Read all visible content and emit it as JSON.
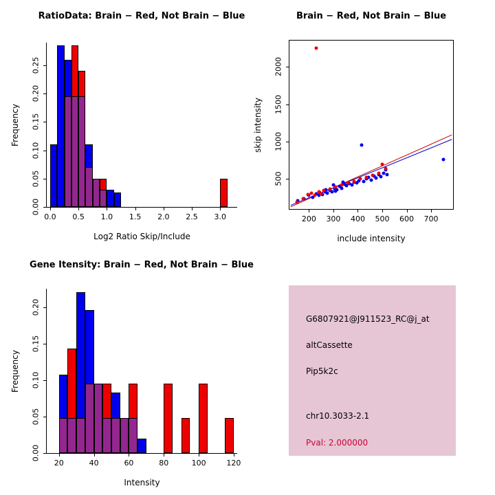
{
  "colors": {
    "red": "#ee0000",
    "blue": "#0000ee",
    "purple": "#93278f"
  },
  "panels": {
    "ratio_hist": {
      "title": "RatioData: Brain − Red, Not Brain − Blue",
      "xlabel": "Log2 Ratio Skip/Include",
      "ylabel": "Frequency"
    },
    "scatter": {
      "title": "Brain − Red, Not Brain − Blue",
      "xlabel": "include intensity",
      "ylabel": "skip intensity"
    },
    "gene_hist": {
      "title": "Gene Itensity: Brain − Red, Not Brain − Blue",
      "xlabel": "Intensity",
      "ylabel": "Frequency"
    },
    "info_box": {
      "bg": "#e6c6d4",
      "lines": [
        "G6807921@J911523_RC@j_at",
        "altCassette",
        "Pip5k2c",
        "chr10.3033-2.1"
      ],
      "pval": "Pval: 2.000000",
      "pval_color": "#cc0033"
    }
  },
  "chart_data": [
    {
      "type": "histogram",
      "panel": "ratio_hist",
      "title": "RatioData: Brain − Red, Not Brain − Blue",
      "xlabel": "Log2 Ratio Skip/Include",
      "ylabel": "Frequency",
      "bin_start": 0,
      "bin_width": 0.125,
      "xlim": [
        -0.06,
        3.3
      ],
      "ylim": [
        0,
        0.29
      ],
      "xticks": [
        0,
        0.5,
        1,
        1.5,
        2,
        2.5,
        3
      ],
      "xtick_labels": [
        "0.0",
        "0.5",
        "1.0",
        "1.5",
        "2.0",
        "2.5",
        "3.0"
      ],
      "yticks": [
        0,
        0.05,
        0.1,
        0.15,
        0.2,
        0.25
      ],
      "ytick_labels": [
        "0.00",
        "0.05",
        "0.10",
        "0.15",
        "0.20",
        "0.25"
      ],
      "series": [
        {
          "name": "Not Brain",
          "role": "blue",
          "color": "#0000ee",
          "values": [
            0.11,
            0.285,
            0.26,
            0.195,
            0.195,
            0.11,
            0.05,
            0.03,
            0.03,
            0.025,
            0,
            0,
            0,
            0,
            0,
            0,
            0,
            0,
            0,
            0,
            0,
            0,
            0,
            0,
            0
          ]
        },
        {
          "name": "Brain",
          "role": "red",
          "color": "#ee0000",
          "values": [
            0,
            0,
            0.195,
            0.285,
            0.24,
            0.07,
            0.05,
            0.05,
            0,
            0,
            0,
            0,
            0,
            0,
            0,
            0,
            0,
            0,
            0,
            0,
            0,
            0,
            0,
            0,
            0.05
          ]
        }
      ]
    },
    {
      "type": "scatter",
      "panel": "scatter",
      "title": "Brain − Red, Not Brain − Blue",
      "xlabel": "include intensity",
      "ylabel": "skip intensity",
      "xlim": [
        120,
        790
      ],
      "ylim": [
        100,
        2350
      ],
      "xticks": [
        200,
        300,
        400,
        500,
        600,
        700
      ],
      "xtick_labels": [
        "200",
        "300",
        "400",
        "500",
        "600",
        "700"
      ],
      "yticks": [
        500,
        1000,
        1500,
        2000
      ],
      "ytick_labels": [
        "500",
        "1000",
        "1500",
        "2000"
      ],
      "series": [
        {
          "name": "Not Brain",
          "role": "blue",
          "color": "#0000ee",
          "points": [
            [
              155,
              210
            ],
            [
              180,
              240
            ],
            [
              200,
              280
            ],
            [
              215,
              255
            ],
            [
              230,
              300
            ],
            [
              245,
              320
            ],
            [
              255,
              290
            ],
            [
              265,
              330
            ],
            [
              275,
              310
            ],
            [
              285,
              345
            ],
            [
              295,
              330
            ],
            [
              300,
              420
            ],
            [
              305,
              370
            ],
            [
              315,
              355
            ],
            [
              325,
              400
            ],
            [
              335,
              380
            ],
            [
              345,
              430
            ],
            [
              355,
              410
            ],
            [
              365,
              440
            ],
            [
              375,
              420
            ],
            [
              385,
              460
            ],
            [
              395,
              445
            ],
            [
              405,
              480
            ],
            [
              415,
              950
            ],
            [
              425,
              470
            ],
            [
              435,
              500
            ],
            [
              445,
              520
            ],
            [
              455,
              490
            ],
            [
              465,
              540
            ],
            [
              475,
              510
            ],
            [
              485,
              560
            ],
            [
              495,
              530
            ],
            [
              505,
              580
            ],
            [
              515,
              620
            ],
            [
              520,
              560
            ],
            [
              750,
              760
            ],
            [
              340,
              460
            ],
            [
              310,
              340
            ],
            [
              270,
              360
            ],
            [
              240,
              280
            ]
          ]
        },
        {
          "name": "Brain",
          "role": "red",
          "color": "#ee0000",
          "points": [
            [
              230,
              2250
            ],
            [
              150,
              190
            ],
            [
              175,
              240
            ],
            [
              195,
              290
            ],
            [
              210,
              310
            ],
            [
              225,
              280
            ],
            [
              240,
              330
            ],
            [
              260,
              350
            ],
            [
              285,
              370
            ],
            [
              310,
              390
            ],
            [
              335,
              420
            ],
            [
              360,
              450
            ],
            [
              385,
              470
            ],
            [
              410,
              500
            ],
            [
              435,
              520
            ],
            [
              460,
              550
            ],
            [
              485,
              580
            ],
            [
              500,
              700
            ],
            [
              515,
              640
            ],
            [
              250,
              300
            ]
          ]
        }
      ],
      "lines": [
        {
          "name": "brain-fit",
          "color": "#cc0000",
          "x": [
            125,
            785
          ],
          "y": [
            130,
            1090
          ]
        },
        {
          "name": "notbrain-fit",
          "color": "#0000cc",
          "x": [
            125,
            785
          ],
          "y": [
            150,
            1030
          ]
        }
      ]
    },
    {
      "type": "histogram",
      "panel": "gene_hist",
      "title": "Gene Itensity: Brain − Red, Not Brain − Blue",
      "xlabel": "Intensity",
      "ylabel": "Frequency",
      "bin_start": 20,
      "bin_width": 5,
      "xlim": [
        13,
        122
      ],
      "ylim": [
        0,
        0.225
      ],
      "xticks": [
        20,
        40,
        60,
        80,
        100,
        120
      ],
      "xtick_labels": [
        "20",
        "40",
        "60",
        "80",
        "100",
        "120"
      ],
      "yticks": [
        0,
        0.05,
        0.1,
        0.15,
        0.2
      ],
      "ytick_labels": [
        "0.00",
        "0.05",
        "0.10",
        "0.15",
        "0.20"
      ],
      "series": [
        {
          "name": "Not Brain",
          "role": "blue",
          "color": "#0000ee",
          "values": [
            0.107,
            0.048,
            0.22,
            0.196,
            0.095,
            0.048,
            0.083,
            0.048,
            0.048,
            0.02,
            0,
            0,
            0,
            0,
            0,
            0,
            0,
            0,
            0,
            0
          ]
        },
        {
          "name": "Brain",
          "role": "red",
          "color": "#ee0000",
          "values": [
            0.048,
            0.143,
            0.048,
            0.095,
            0.095,
            0.095,
            0.048,
            0.048,
            0.095,
            0,
            0,
            0,
            0.095,
            0,
            0.048,
            0,
            0.095,
            0,
            0,
            0.048
          ]
        }
      ]
    }
  ]
}
